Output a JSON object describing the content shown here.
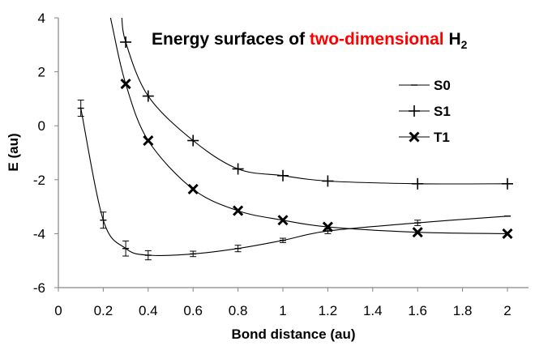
{
  "chart_data": {
    "type": "line",
    "title_parts": {
      "prefix": "Energy surfaces of ",
      "highlight": "two-dimensional",
      "formula": "H",
      "subscript": "2"
    },
    "highlight_color": "#ff0000",
    "xlabel": "Bond distance (au)",
    "ylabel": "E (au)",
    "xlim": [
      0,
      2
    ],
    "ylim": [
      -6,
      4
    ],
    "x_ticks": [
      "0",
      "0.2",
      "0.4",
      "0.6",
      "0.8",
      "1",
      "1.2",
      "1.4",
      "1.6",
      "1.8",
      "2"
    ],
    "y_ticks": [
      "-6",
      "-4",
      "-2",
      "0",
      "2",
      "4"
    ],
    "grid": false,
    "legend_position": "top-right",
    "series": [
      {
        "name": "S0",
        "marker": "dash",
        "x": [
          0.1,
          0.2,
          0.3,
          0.4,
          0.6,
          0.8,
          1.0,
          1.2,
          1.6,
          2.0
        ],
        "y": [
          0.65,
          -3.5,
          -4.55,
          -4.8,
          -4.75,
          -4.55,
          -4.25,
          -3.9,
          -3.6,
          -3.35
        ],
        "err": [
          0.3,
          0.3,
          0.28,
          0.17,
          0.1,
          0.12,
          0.08,
          0.1,
          0.1,
          0.0
        ]
      },
      {
        "name": "S1",
        "marker": "plus",
        "x": [
          0.3,
          0.4,
          0.6,
          0.8,
          1.0,
          1.2,
          1.6,
          2.0
        ],
        "y": [
          3.1,
          1.1,
          -0.55,
          -1.6,
          -1.85,
          -2.05,
          -2.15,
          -2.15
        ]
      },
      {
        "name": "T1",
        "marker": "cross",
        "x": [
          0.3,
          0.4,
          0.6,
          0.8,
          1.0,
          1.2,
          1.6,
          2.0
        ],
        "y": [
          1.55,
          -0.55,
          -2.35,
          -3.15,
          -3.5,
          -3.75,
          -3.95,
          -4.0
        ]
      }
    ]
  }
}
